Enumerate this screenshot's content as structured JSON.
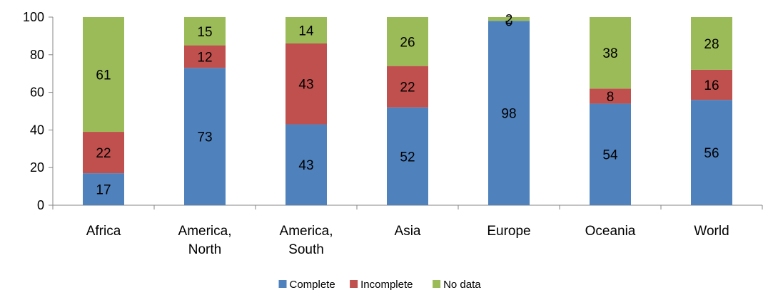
{
  "chart_data": {
    "type": "bar",
    "stacked": true,
    "categories": [
      [
        "Africa"
      ],
      [
        "America,",
        "North"
      ],
      [
        "America,",
        "South"
      ],
      [
        "Asia"
      ],
      [
        "Europe"
      ],
      [
        "Oceania"
      ],
      [
        "World"
      ]
    ],
    "series": [
      {
        "name": "Complete",
        "color": "#4f81bd",
        "values": [
          17,
          73,
          43,
          52,
          98,
          54,
          56
        ]
      },
      {
        "name": "Incomplete",
        "color": "#c0504d",
        "values": [
          22,
          12,
          43,
          22,
          0,
          8,
          16
        ]
      },
      {
        "name": "No data",
        "color": "#9bbb59",
        "values": [
          61,
          15,
          14,
          26,
          2,
          38,
          28
        ]
      }
    ],
    "ylim": [
      0,
      100
    ],
    "yticks": [
      0,
      20,
      40,
      60,
      80,
      100
    ],
    "legend": "bottom",
    "grid": false
  }
}
